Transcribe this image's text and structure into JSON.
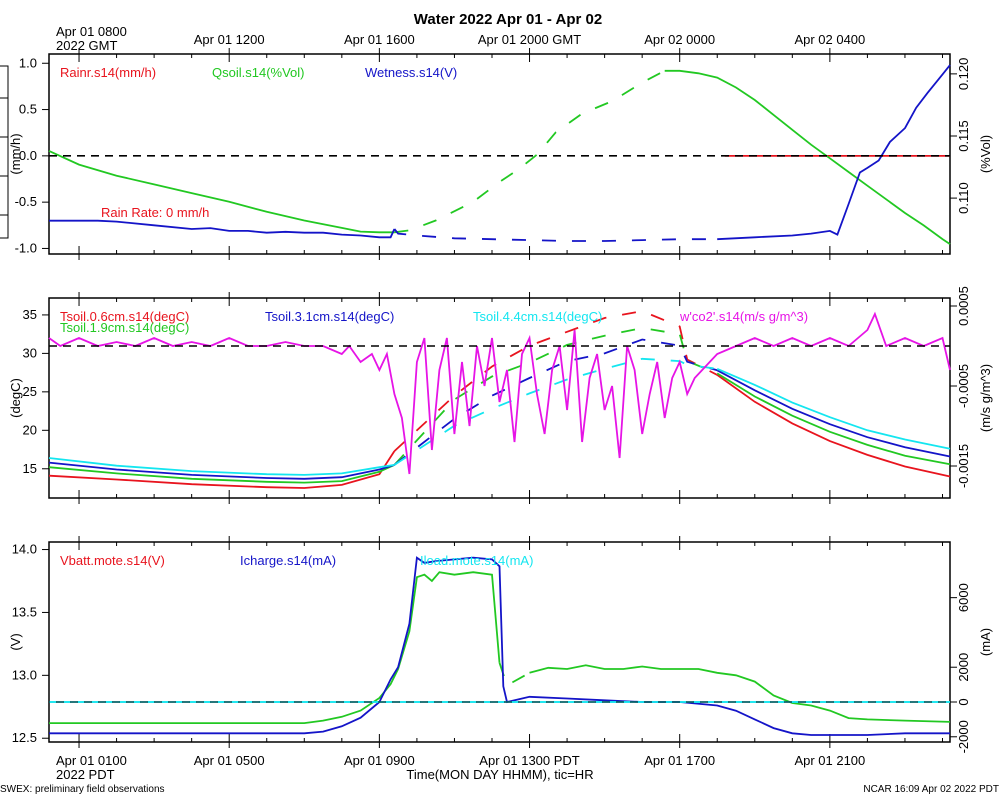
{
  "page": {
    "title": "Water 2022 Apr 01 - Apr 02",
    "top_time_labels": [
      {
        "hours": 0,
        "text": "Apr 01 0800"
      },
      {
        "hours": 4,
        "text": "Apr 01 1200"
      },
      {
        "hours": 8,
        "text": "Apr 01 1600"
      },
      {
        "hours": 12,
        "text": "Apr 01 2000 GMT"
      },
      {
        "hours": 16,
        "text": "Apr 02 0000"
      },
      {
        "hours": 20,
        "text": "Apr 02 0400"
      }
    ],
    "top_year_label": "2022 GMT",
    "bottom_time_labels": [
      {
        "hours": 0,
        "text": "Apr 01 0100"
      },
      {
        "hours": 4,
        "text": "Apr 01 0500"
      },
      {
        "hours": 8,
        "text": "Apr 01 0900"
      },
      {
        "hours": 12,
        "text": "Apr 01 1300 PDT"
      },
      {
        "hours": 16,
        "text": "Apr 01 1700"
      },
      {
        "hours": 20,
        "text": "Apr 01 2100"
      }
    ],
    "bottom_year_label": "2022 PDT",
    "x_axis_label": "Time(MON DAY HHMM), tic=HR",
    "footer_left": "SWEX: preliminary field observations",
    "footer_right": "NCAR 16:09 Apr 02 2022 PDT",
    "colors": {
      "red": "#e8141e",
      "green": "#22c822",
      "blue": "#1414c8",
      "cyan": "#14e6f0",
      "magenta": "#e614e6",
      "black": "#000000"
    }
  },
  "chart_data": [
    {
      "type": "line",
      "time_hours_range": [
        -0.8,
        23.2
      ],
      "left_axis": {
        "label": "(mm/h)",
        "ticks": [
          -1.0,
          -0.5,
          0.0,
          0.5,
          1.0
        ],
        "tick_labels": [
          "-1.0",
          "-0.5",
          "0.0",
          "0.5",
          "1.0"
        ],
        "range": [
          -1.06,
          1.1
        ]
      },
      "right_axis": {
        "label": "(%Vol)",
        "ticks": [
          0.11,
          0.115,
          0.12
        ],
        "tick_labels": [
          "0.110",
          "0.115",
          "0.120"
        ],
        "range": [
          0.1055,
          0.1216
        ]
      },
      "dashed_reference": {
        "axis": "left",
        "value": 0
      },
      "annotation": "Rain Rate: 0 mm/h",
      "series": [
        {
          "name": "Rainr.s14(mm/h)",
          "color": "#e8141e",
          "axis": "left",
          "x": [
            17.2,
            23.2
          ],
          "y": [
            0,
            0
          ]
        },
        {
          "name": "Qsoil.s14(%Vol)",
          "color": "#22c822",
          "axis": "right",
          "gaps_between": [
            8.4,
            15.1
          ],
          "x": [
            -0.8,
            0,
            1,
            2,
            3,
            4,
            5,
            6,
            7,
            7.5,
            8,
            8.4,
            8.8,
            9.5,
            10.5,
            11.2,
            11.7,
            12.2,
            12.7,
            13.4,
            14.2,
            15,
            15.6,
            16,
            16.5,
            17,
            17.5,
            18,
            18.5,
            19,
            19.5,
            20,
            20.5,
            21,
            21.5,
            22,
            22.5,
            23,
            23.2
          ],
          "y": [
            0.1138,
            0.1127,
            0.1118,
            0.1111,
            0.1104,
            0.1097,
            0.1089,
            0.1082,
            0.1076,
            0.1073,
            0.10725,
            0.10725,
            0.1074,
            0.1082,
            0.1097,
            0.1113,
            0.1123,
            0.1135,
            0.1153,
            0.1168,
            0.1178,
            0.1193,
            0.12025,
            0.12025,
            0.12005,
            0.1197,
            0.1189,
            0.1179,
            0.1167,
            0.1155,
            0.1143,
            0.1132,
            0.1121,
            0.111,
            0.1099,
            0.1088,
            0.1078,
            0.1067,
            0.1063
          ]
        },
        {
          "name": "Wetness.s14(V)",
          "color": "#1414c8",
          "axis": "left",
          "gaps_between": [
            8.4,
            16.1
          ],
          "x": [
            -0.8,
            0,
            0.5,
            1,
            2,
            3,
            3.5,
            4,
            4.5,
            5,
            5.5,
            6,
            6.5,
            7,
            7.5,
            8,
            8.3,
            8.4,
            8.5,
            9,
            10,
            11,
            12,
            13,
            14,
            15,
            16,
            17,
            18,
            19,
            19.5,
            20,
            20.2,
            20.5,
            20.8,
            21,
            21.3,
            21.6,
            22,
            22.3,
            22.6,
            23,
            23.2
          ],
          "y": [
            -0.7,
            -0.7,
            -0.7,
            -0.71,
            -0.75,
            -0.79,
            -0.78,
            -0.81,
            -0.81,
            -0.83,
            -0.82,
            -0.83,
            -0.83,
            -0.85,
            -0.86,
            -0.88,
            -0.88,
            -0.79,
            -0.84,
            -0.86,
            -0.89,
            -0.9,
            -0.91,
            -0.92,
            -0.92,
            -0.91,
            -0.9,
            -0.9,
            -0.88,
            -0.86,
            -0.84,
            -0.81,
            -0.85,
            -0.52,
            -0.18,
            -0.13,
            -0.05,
            0.15,
            0.3,
            0.52,
            0.68,
            0.88,
            0.98
          ]
        }
      ]
    },
    {
      "type": "line",
      "time_hours_range": [
        -0.8,
        23.2
      ],
      "left_axis": {
        "label": "(degC)",
        "ticks": [
          15,
          20,
          25,
          30,
          35
        ],
        "tick_labels": [
          "15",
          "20",
          "25",
          "30",
          "35"
        ],
        "range": [
          11.2,
          37.2
        ]
      },
      "right_axis": {
        "label": "(m/s g/m^3)",
        "ticks": [
          -0.0015,
          -0.0005,
          0.0005
        ],
        "tick_labels": [
          "-0.0015",
          "-0.0005",
          "0.0005"
        ],
        "range": [
          -0.0019,
          0.0006
        ]
      },
      "dashed_reference": {
        "axis": "right",
        "value": 0
      },
      "series": [
        {
          "name": "Tsoil.0.6cm.s14(degC)",
          "color": "#e8141e",
          "axis": "left",
          "gaps_between": [
            8.4,
            16.2
          ],
          "x": [
            -0.8,
            1,
            3,
            5,
            6,
            7,
            8,
            8.4,
            10,
            11,
            12,
            13,
            14,
            15,
            16,
            16.2,
            17,
            18,
            19,
            20,
            21,
            22,
            23.2
          ],
          "y": [
            14.1,
            13.6,
            13.0,
            12.6,
            12.5,
            12.9,
            14.3,
            17.3,
            24.5,
            28.3,
            31.0,
            32.8,
            34.6,
            35.5,
            33.5,
            29.2,
            27.2,
            23.7,
            20.9,
            18.6,
            16.8,
            15.3,
            14.0
          ]
        },
        {
          "name": "Tsoil.1.9cm.s14(degC)",
          "color": "#22c822",
          "axis": "left",
          "gaps_between": [
            8.4,
            16.2
          ],
          "x": [
            -0.8,
            1,
            3,
            5,
            6,
            7,
            8,
            8.4,
            10,
            11,
            12,
            13,
            14,
            15,
            16,
            16.2,
            17,
            18,
            19,
            20,
            21,
            22,
            23.2
          ],
          "y": [
            15.2,
            14.4,
            13.7,
            13.3,
            13.2,
            13.4,
            14.6,
            15.5,
            24.0,
            27.0,
            28.8,
            31.1,
            32.3,
            33.3,
            32.5,
            29.0,
            27.4,
            24.4,
            21.9,
            19.8,
            18.1,
            16.7,
            15.6
          ]
        },
        {
          "name": "Tsoil.3.1cm.s14(degC)",
          "color": "#1414c8",
          "axis": "left",
          "gaps_between": [
            8.4,
            16.2
          ],
          "x": [
            -0.8,
            1,
            3,
            5,
            6,
            7,
            8,
            8.4,
            10,
            11,
            12,
            13,
            14,
            15,
            16,
            16.2,
            17,
            18,
            19,
            20,
            21,
            22,
            23.2
          ],
          "y": [
            15.8,
            14.9,
            14.2,
            13.8,
            13.7,
            13.9,
            14.9,
            15.5,
            21.5,
            24.5,
            26.8,
            29.0,
            30.0,
            31.8,
            31.0,
            28.9,
            27.8,
            25.2,
            22.8,
            20.8,
            19.1,
            17.8,
            16.6
          ]
        },
        {
          "name": "Tsoil.4.4cm.s14(degC)",
          "color": "#14e6f0",
          "axis": "left",
          "gaps_between": [
            8.4,
            16.2
          ],
          "x": [
            -0.8,
            1,
            3,
            5,
            6,
            7,
            8,
            8.4,
            10,
            11,
            12,
            13,
            14,
            15,
            16,
            16.2,
            17,
            18,
            19,
            20,
            21,
            22,
            23.2
          ],
          "y": [
            16.4,
            15.4,
            14.7,
            14.3,
            14.2,
            14.4,
            15.2,
            15.5,
            20.6,
            22.8,
            24.8,
            26.6,
            28.0,
            29.3,
            29.0,
            28.5,
            28.0,
            25.9,
            23.6,
            21.7,
            20.0,
            18.8,
            17.6
          ]
        },
        {
          "name": "w'co2'.s14(m/s g/m^3)",
          "color": "#e614e6",
          "axis": "right",
          "x": [
            -0.8,
            -0.5,
            0,
            0.5,
            1,
            1.5,
            2,
            2.5,
            3,
            3.5,
            4,
            4.5,
            5,
            5.5,
            6,
            6.5,
            7,
            7.2,
            7.5,
            7.8,
            8,
            8.2,
            8.4,
            8.6,
            8.8,
            9,
            9.2,
            9.4,
            9.6,
            9.8,
            10,
            10.2,
            10.4,
            10.6,
            10.8,
            11,
            11.2,
            11.4,
            11.6,
            11.8,
            12,
            12.2,
            12.4,
            12.6,
            12.8,
            13,
            13.2,
            13.4,
            13.6,
            13.8,
            14,
            14.2,
            14.4,
            14.6,
            14.8,
            15,
            15.2,
            15.4,
            15.6,
            15.8,
            16,
            16.2,
            16.4,
            16.6,
            16.8,
            17,
            17.5,
            18,
            18.5,
            19,
            19.5,
            20,
            20.5,
            21,
            21.2,
            21.5,
            22,
            22.5,
            23,
            23.2
          ],
          "y": [
            0.0001,
            0.0,
            0.0001,
            0.0,
            5e-05,
            0.0,
            0.0001,
            0.0,
            5e-05,
            0.0,
            0.0001,
            0.0,
            0.0,
            5e-05,
            0.0,
            0.0,
            -0.0001,
            0.0,
            -0.0002,
            -0.0001,
            -0.0003,
            -0.0001,
            -0.0006,
            -0.0009,
            -0.0016,
            -0.0002,
            0.0001,
            -0.0013,
            -0.0003,
            0.0001,
            -0.0011,
            -0.0002,
            -0.001,
            0.0,
            -0.0005,
            0.0001,
            -0.0007,
            -0.0003,
            -0.0012,
            -0.0001,
            0.0001,
            -0.0006,
            -0.0011,
            -0.0003,
            0.0,
            -0.0008,
            0.0002,
            -0.0012,
            -0.0004,
            -0.0001,
            -0.0008,
            -0.0005,
            -0.0014,
            0.0,
            -0.0003,
            -0.0011,
            -0.0006,
            -0.0002,
            -0.0009,
            -0.0004,
            -0.0002,
            -0.0006,
            -0.0004,
            -0.0003,
            -0.0002,
            -0.0001,
            0.0,
            0.0001,
            0.0,
            0.0001,
            0.0,
            0.0001,
            0.0,
            0.0002,
            0.0004,
            0.0,
            0.0001,
            0.0,
            0.0001,
            -0.0003
          ]
        }
      ]
    },
    {
      "type": "line",
      "time_hours_range": [
        -0.8,
        23.2
      ],
      "left_axis": {
        "label": "(V)",
        "ticks": [
          12.5,
          13.0,
          13.5,
          14.0
        ],
        "tick_labels": [
          "12.5",
          "13.0",
          "13.5",
          "14.0"
        ],
        "range": [
          12.47,
          14.06
        ]
      },
      "right_axis": {
        "label": "(mA)",
        "ticks": [
          -2000,
          0,
          2000,
          6000
        ],
        "tick_labels": [
          "-2000",
          "0",
          "2000",
          "6000"
        ],
        "range": [
          -2300,
          9200
        ]
      },
      "dashed_reference": {
        "axis": "right",
        "value": 0
      },
      "series": [
        {
          "name": "Vbatt.mote.s14(V)",
          "color": "#e8141e",
          "axis": "left",
          "x": [],
          "y": []
        },
        {
          "name": "Vbatt.mote.s14(V)",
          "color": "#22c822",
          "axis": "left",
          "gaps_between": [
            11.2,
            11.4
          ],
          "x": [
            -0.8,
            0,
            0.5,
            1,
            2,
            3,
            4,
            5,
            6,
            6.5,
            7,
            7.5,
            8,
            8.3,
            8.5,
            8.8,
            9.0,
            9.2,
            9.4,
            9.6,
            10,
            10.5,
            11,
            11.2,
            11.4,
            12,
            12.5,
            13,
            13.5,
            14,
            14.5,
            15,
            15.5,
            16,
            16.5,
            17,
            17.5,
            18,
            18.5,
            19,
            19.5,
            20,
            20.5,
            21,
            22,
            23.2
          ],
          "y": [
            12.62,
            12.62,
            12.62,
            12.62,
            12.62,
            12.62,
            12.62,
            12.62,
            12.62,
            12.64,
            12.67,
            12.72,
            12.82,
            12.93,
            13.05,
            13.35,
            13.78,
            13.8,
            13.75,
            13.82,
            13.8,
            13.82,
            13.8,
            13.1,
            12.92,
            13.02,
            13.06,
            13.05,
            13.08,
            13.05,
            13.05,
            13.07,
            13.05,
            13.05,
            13.05,
            13.02,
            13.0,
            12.95,
            12.84,
            12.78,
            12.76,
            12.72,
            12.66,
            12.65,
            12.64,
            12.63
          ]
        },
        {
          "name": "Icharge.s14(mA)",
          "color": "#1414c8",
          "axis": "right",
          "x": [
            -0.8,
            0,
            1,
            2,
            3,
            4,
            5,
            6,
            6.5,
            7,
            7.5,
            8,
            8.3,
            8.5,
            8.8,
            9.0,
            9.2,
            9.5,
            10,
            10.5,
            11,
            11.2,
            11.3,
            11.4,
            12,
            13,
            14,
            15,
            16,
            17,
            17.5,
            18,
            18.5,
            19,
            19.5,
            20,
            21,
            22,
            23.2
          ],
          "y": [
            -1800,
            -1800,
            -1800,
            -1800,
            -1800,
            -1800,
            -1800,
            -1800,
            -1700,
            -1400,
            -900,
            0,
            1300,
            2000,
            4500,
            8300,
            8000,
            8100,
            8200,
            8300,
            8200,
            7800,
            900,
            0,
            300,
            200,
            100,
            0,
            0,
            -200,
            -500,
            -1000,
            -1500,
            -1800,
            -1900,
            -1900,
            -1900,
            -1800,
            -1800
          ]
        },
        {
          "name": "Iload.mote.s14(mA)",
          "color": "#14e6f0",
          "axis": "right",
          "x": [
            -0.8,
            23.2
          ],
          "y": [
            0,
            0
          ]
        }
      ]
    }
  ]
}
